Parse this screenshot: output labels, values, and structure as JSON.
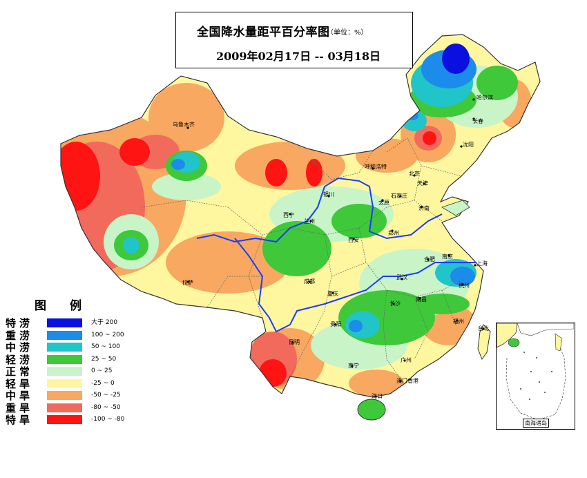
{
  "title": {
    "main": "全国降水量距平百分率图",
    "unit": "（单位：%）",
    "date": "2009年02月17日 -- 03月18日"
  },
  "legend": {
    "title": "图例",
    "items": [
      {
        "category": "特涝",
        "range": "大于 200",
        "color": "#0a10e0"
      },
      {
        "category": "重涝",
        "range": "100 ~ 200",
        "color": "#1c8cea"
      },
      {
        "category": "中涝",
        "range": "50 ~ 100",
        "color": "#21c4c8"
      },
      {
        "category": "轻涝",
        "range": "25 ~ 50",
        "color": "#3ec83a"
      },
      {
        "category": "正常",
        "range": "0 ~ 25",
        "color": "#c8f4c8"
      },
      {
        "category": "轻旱",
        "range": "-25 ~ 0",
        "color": "#fff7a0"
      },
      {
        "category": "中旱",
        "range": "-50 ~ -25",
        "color": "#f8a860"
      },
      {
        "category": "重旱",
        "range": "-80 ~ -50",
        "color": "#f26a5c"
      },
      {
        "category": "特旱",
        "range": "-100 ~ -80",
        "color": "#ff1414"
      }
    ]
  },
  "cities": [
    {
      "name": "乌鲁木齐"
    },
    {
      "name": "哈尔滨"
    },
    {
      "name": "长春"
    },
    {
      "name": "沈阳"
    },
    {
      "name": "呼和浩特"
    },
    {
      "name": "北京"
    },
    {
      "name": "天津"
    },
    {
      "name": "石家庄"
    },
    {
      "name": "太原"
    },
    {
      "name": "济南"
    },
    {
      "name": "银川"
    },
    {
      "name": "西宁"
    },
    {
      "name": "兰州"
    },
    {
      "name": "郑州"
    },
    {
      "name": "西安"
    },
    {
      "name": "合肥"
    },
    {
      "name": "南京"
    },
    {
      "name": "上海"
    },
    {
      "name": "拉萨"
    },
    {
      "name": "成都"
    },
    {
      "name": "重庆"
    },
    {
      "name": "武汉"
    },
    {
      "name": "杭州"
    },
    {
      "name": "南昌"
    },
    {
      "name": "长沙"
    },
    {
      "name": "福州"
    },
    {
      "name": "贵阳"
    },
    {
      "name": "昆明"
    },
    {
      "name": "南宁"
    },
    {
      "name": "广州"
    },
    {
      "name": "澳门香港"
    },
    {
      "name": "台北"
    },
    {
      "name": "海口"
    }
  ],
  "inset": {
    "label": "南海诸岛"
  }
}
